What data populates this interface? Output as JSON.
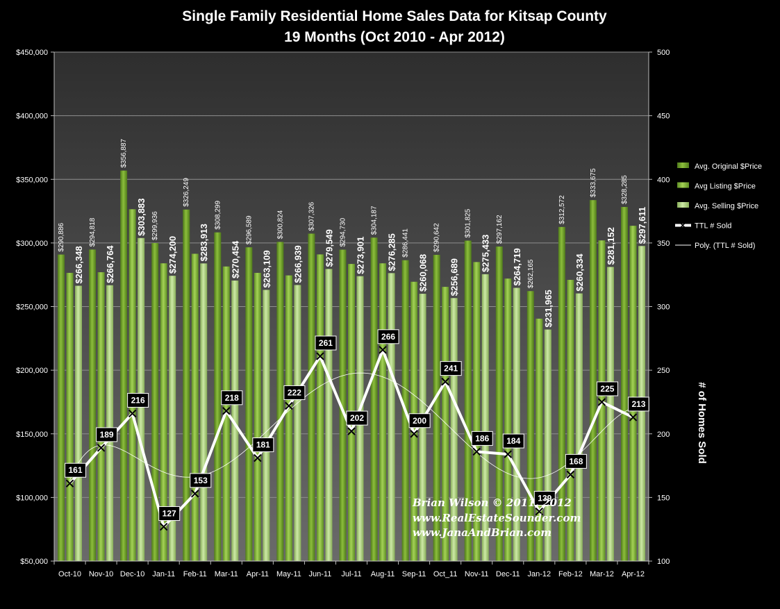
{
  "chart_data": {
    "type": "bar",
    "title_line1": "Single Family Residential Home Sales Data for Kitsap County",
    "title_line2": "19 Months (Oct  2010 - Apr 2012)",
    "categories": [
      "Oct-10",
      "Nov-10",
      "Dec-10",
      "Jan-11",
      "Feb-11",
      "Mar-11",
      "Apr-11",
      "May-11",
      "Jun-11",
      "Jul-11",
      "Aug-11",
      "Sep-11",
      "Oct_11",
      "Nov-11",
      "Dec-11",
      "Jan-12",
      "Feb-12",
      "Mar-12",
      "Apr-12"
    ],
    "series": [
      {
        "name": "Avg. Original $Price",
        "color": "#6e9a2c",
        "values": [
          290886,
          294818,
          356887,
          299936,
          326249,
          308299,
          296589,
          300824,
          307326,
          294730,
          304187,
          286441,
          290642,
          301825,
          297162,
          262165,
          312572,
          333675,
          328285
        ],
        "labels": [
          "$290,886",
          "$294,818",
          "$356,887",
          "$299,936",
          "$326,249",
          "$308,299",
          "$296,589",
          "$300,824",
          "$307,326",
          "$294,730",
          "$304,187",
          "$286,441",
          "$290,642",
          "$301,825",
          "$297,162",
          "$262,165",
          "$312,572",
          "$333,675",
          "$328,285"
        ]
      },
      {
        "name": "Avg Listing $Price",
        "color": "#88b83d",
        "values": [
          276500,
          277000,
          326500,
          284000,
          291500,
          281500,
          276500,
          274500,
          291000,
          283500,
          284000,
          269500,
          265500,
          285000,
          272000,
          240500,
          271000,
          302000,
          313500
        ]
      },
      {
        "name": "Avg. Selling $Price",
        "color": "#b5d98a",
        "values": [
          266348,
          266764,
          303883,
          274200,
          283913,
          270454,
          263109,
          266939,
          279549,
          273901,
          276285,
          260068,
          256689,
          275433,
          264719,
          231965,
          260334,
          281152,
          297611
        ],
        "labels": [
          "$266,348",
          "$266,764",
          "$303,883",
          "$274,200",
          "$283,913",
          "$270,454",
          "$263,109",
          "$266,939",
          "$279,549",
          "$273,901",
          "$276,285",
          "$260,068",
          "$256,689",
          "$275,433",
          "$264,719",
          "$231,965",
          "$260,334",
          "$281,152",
          "$297,611"
        ]
      },
      {
        "name": "TTL # Sold",
        "axis": "secondary",
        "color": "#ffffff",
        "values": [
          161,
          189,
          216,
          127,
          153,
          218,
          181,
          222,
          261,
          202,
          266,
          200,
          241,
          186,
          184,
          139,
          168,
          225,
          213
        ]
      },
      {
        "name": "Poly. (TTL # Sold)",
        "axis": "secondary",
        "color": "#ffffff"
      }
    ],
    "y_left": {
      "ylim": [
        50000,
        450000
      ],
      "step": 50000,
      "tick_labels": [
        "$50,000",
        "$100,000",
        "$150,000",
        "$200,000",
        "$250,000",
        "$300,000",
        "$350,000",
        "$400,000",
        "$450,000"
      ]
    },
    "y_right": {
      "ylim": [
        100,
        500
      ],
      "step": 50,
      "tick_labels": [
        "100",
        "150",
        "200",
        "250",
        "300",
        "350",
        "400",
        "450",
        "500"
      ],
      "label": "# of Homes Sold"
    },
    "grid": true,
    "legend_position": "right",
    "watermark": [
      "Brian Wilson  © 2011, 2012",
      "www.RealEstateSounder.com",
      "www.JanaAndBrian.com"
    ],
    "colors": {
      "background": "#000000",
      "plot_area": "#5c5c5c",
      "gridline": "#8a8a8a"
    }
  }
}
